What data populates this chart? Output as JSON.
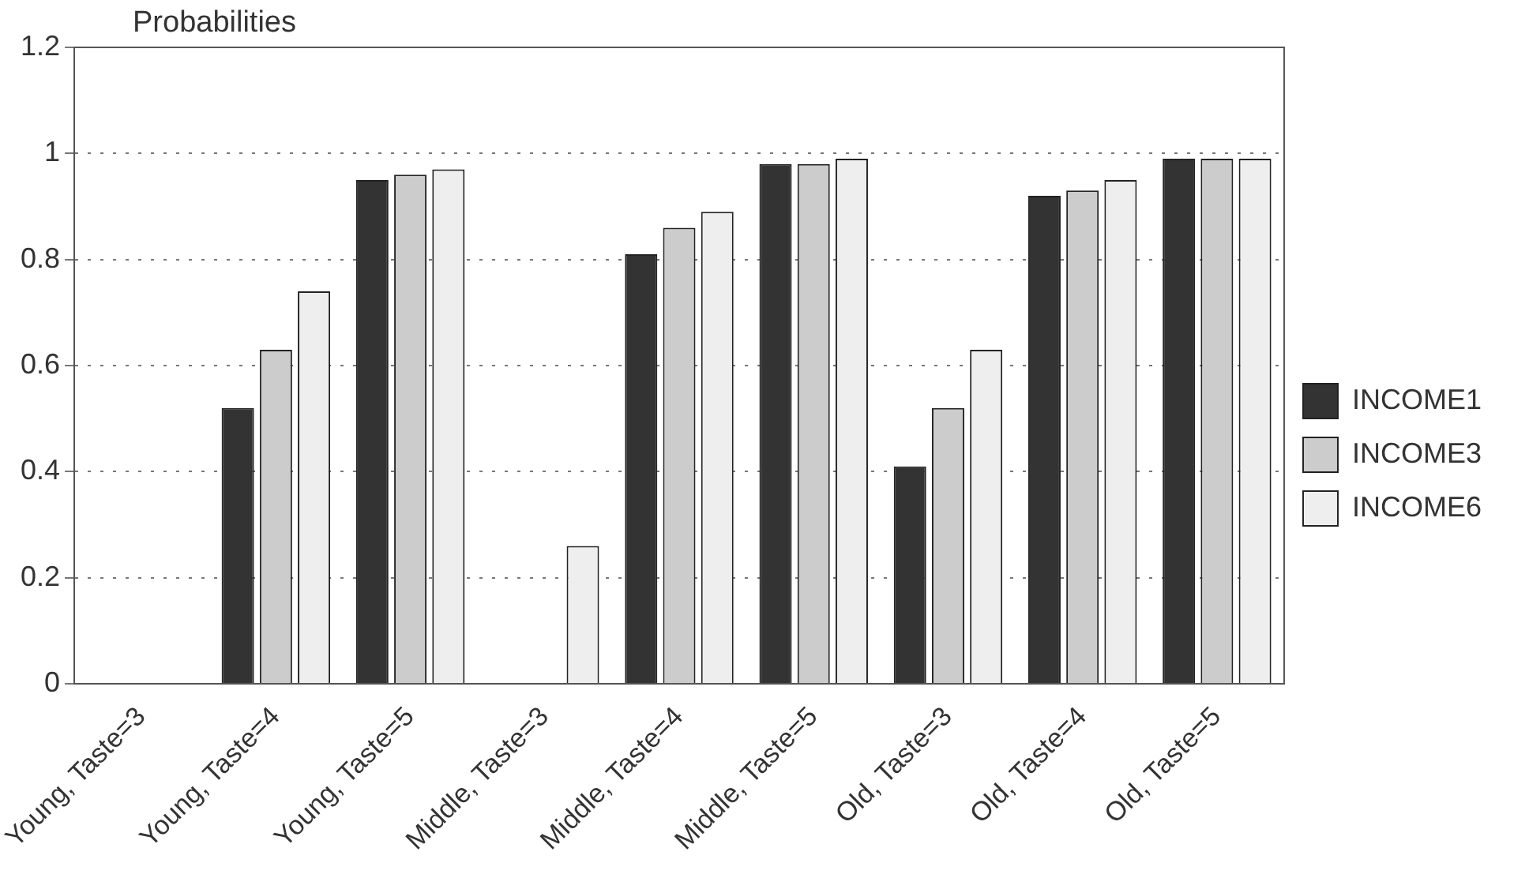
{
  "chart_data": {
    "type": "bar",
    "ylabel": "Probabilities",
    "categories": [
      "Young, Taste=3",
      "Young, Taste=4",
      "Young, Taste=5",
      "Middle, Taste=3",
      "Middle, Taste=4",
      "Middle, Taste=5",
      "Old, Taste=3",
      "Old, Taste=4",
      "Old, Taste=5"
    ],
    "series": [
      {
        "name": "INCOME1",
        "color": "#333333",
        "values": [
          0,
          0.52,
          0.95,
          0,
          0.81,
          0.98,
          0.41,
          0.92,
          0.99
        ]
      },
      {
        "name": "INCOME3",
        "color": "#cccccc",
        "values": [
          0,
          0.63,
          0.96,
          0,
          0.86,
          0.98,
          0.52,
          0.93,
          0.99
        ]
      },
      {
        "name": "INCOME6",
        "color": "#eeeeee",
        "values": [
          0,
          0.74,
          0.97,
          0.26,
          0.89,
          0.99,
          0.63,
          0.95,
          0.99
        ]
      }
    ],
    "ylim": [
      0,
      1.2
    ],
    "yticks": [
      0,
      0.2,
      0.4,
      0.6,
      0.8,
      1,
      1.2
    ],
    "grid": "y",
    "legend": "right"
  }
}
